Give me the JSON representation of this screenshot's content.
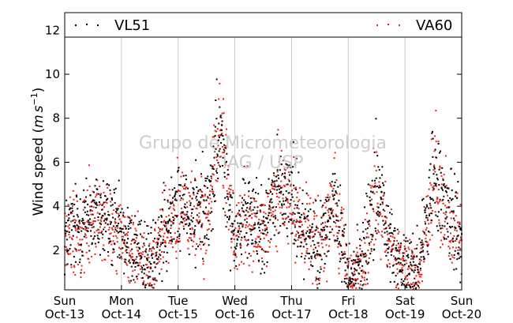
{
  "chart_data": {
    "type": "scatter",
    "ylabel": "Wind speed (m s⁻¹)",
    "ylabel_prefix": "Wind speed (",
    "ylabel_unit_m": "m",
    "ylabel_unit_s": "s",
    "ylabel_unit_exp": "−1",
    "ylabel_suffix": ")",
    "ylim": [
      0.2,
      12.8
    ],
    "xlim": [
      0,
      7
    ],
    "grid": "vertical",
    "legend_placement": "top",
    "y_ticks": [
      "2",
      "4",
      "6",
      "8",
      "10",
      "12"
    ],
    "y_tick_values": [
      2,
      4,
      6,
      8,
      10,
      12
    ],
    "x_tick_values": [
      0,
      1,
      2,
      3,
      4,
      5,
      6,
      7
    ],
    "x_ticks": [
      {
        "day": "Sun",
        "date": "Oct-13"
      },
      {
        "day": "Mon",
        "date": "Oct-14"
      },
      {
        "day": "Tue",
        "date": "Oct-15"
      },
      {
        "day": "Wed",
        "date": "Oct-16"
      },
      {
        "day": "Thu",
        "date": "Oct-17"
      },
      {
        "day": "Fri",
        "date": "Oct-18"
      },
      {
        "day": "Sat",
        "date": "Oct-19"
      },
      {
        "day": "Sun",
        "date": "Oct-20"
      }
    ],
    "series": [
      {
        "name": "VL51",
        "color": "#000000",
        "x_unit": "days from Oct-13 00:00",
        "x": [
          0.0,
          0.25,
          0.5,
          0.75,
          1.0,
          1.25,
          1.5,
          1.75,
          2.0,
          2.25,
          2.5,
          2.75,
          3.0,
          3.25,
          3.5,
          3.75,
          4.0,
          4.25,
          4.5,
          4.75,
          5.0,
          5.25,
          5.5,
          5.75,
          6.0,
          6.25,
          6.5,
          6.75,
          7.0
        ],
        "values": [
          2.6,
          3.2,
          3.6,
          3.4,
          2.6,
          2.0,
          1.4,
          3.2,
          4.0,
          3.8,
          3.6,
          7.2,
          2.8,
          3.6,
          2.8,
          4.8,
          4.2,
          3.0,
          2.2,
          4.2,
          1.0,
          1.6,
          5.0,
          2.2,
          1.2,
          1.2,
          5.4,
          3.6,
          2.8
        ]
      },
      {
        "name": "VA60",
        "color": "#e8231b",
        "x_unit": "days from Oct-13 00:00",
        "x": [
          0.0,
          0.25,
          0.5,
          0.75,
          1.0,
          1.25,
          1.5,
          1.75,
          2.0,
          2.25,
          2.5,
          2.75,
          3.0,
          3.25,
          3.5,
          3.75,
          4.0,
          4.25,
          4.5,
          4.75,
          5.0,
          5.25,
          5.5,
          5.75,
          6.0,
          6.25,
          6.5,
          6.75,
          7.0
        ],
        "values": [
          2.4,
          3.0,
          3.4,
          3.2,
          2.4,
          1.8,
          1.2,
          3.0,
          3.8,
          3.6,
          3.4,
          7.0,
          2.6,
          3.4,
          2.6,
          4.6,
          4.0,
          2.8,
          2.0,
          4.0,
          0.8,
          1.4,
          4.8,
          2.0,
          1.0,
          1.0,
          5.2,
          3.4,
          2.6
        ]
      }
    ]
  },
  "watermark": {
    "line1": "Grupo de Micrometeorologia",
    "line2": "IAG / USP"
  }
}
